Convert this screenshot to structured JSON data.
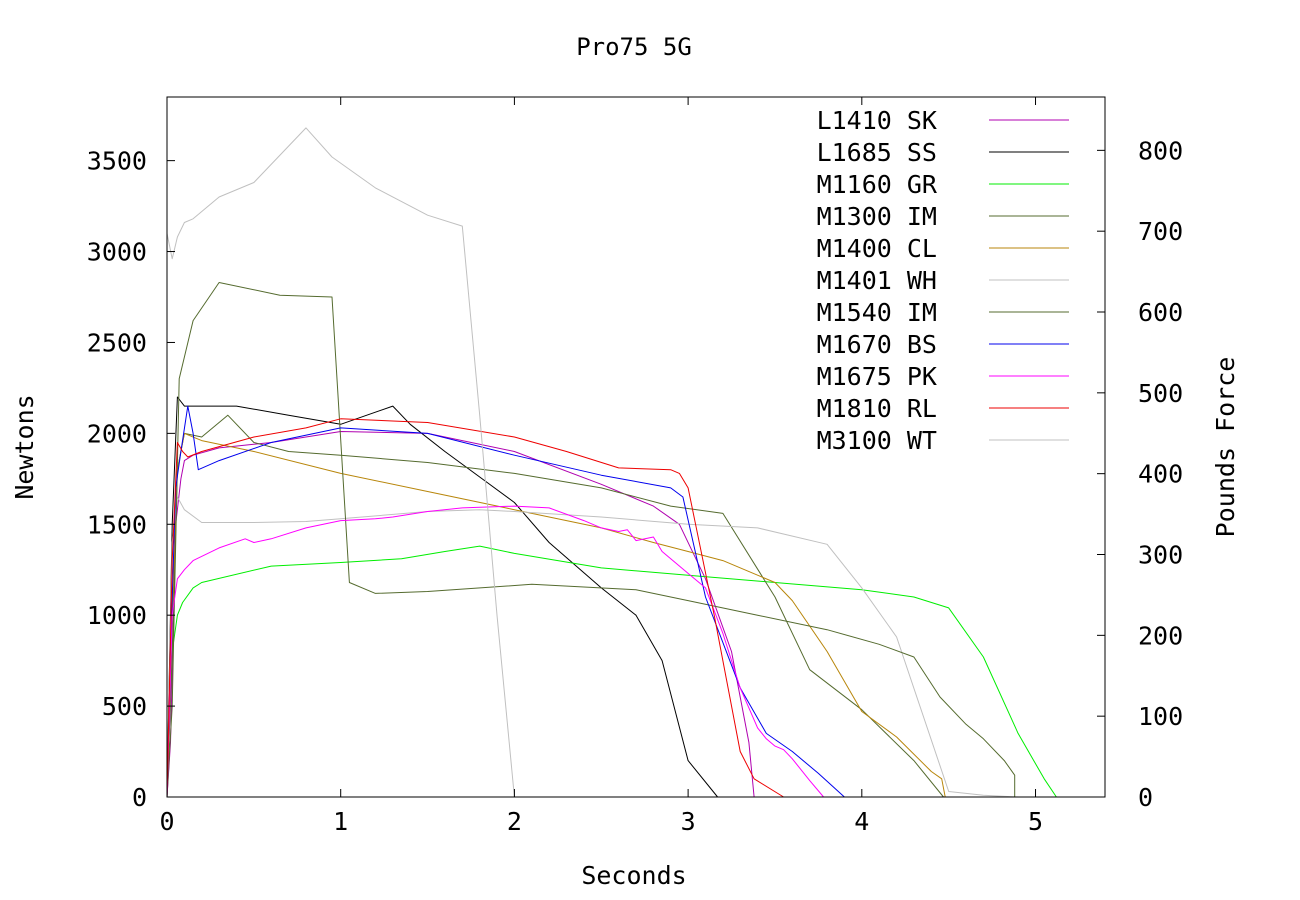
{
  "chart_data": {
    "type": "line",
    "title": "Pro75 5G",
    "xlabel": "Seconds",
    "ylabel": "Newtons",
    "y2label": "Pounds Force",
    "xlim": [
      0,
      5.4
    ],
    "ylim": [
      0,
      3850
    ],
    "y2lim": [
      0,
      866
    ],
    "xticks": [
      0,
      1,
      2,
      3,
      4,
      5
    ],
    "yticks": [
      0,
      500,
      1000,
      1500,
      2000,
      2500,
      3000,
      3500
    ],
    "y2ticks": [
      0,
      100,
      200,
      300,
      400,
      500,
      600,
      700,
      800
    ],
    "grid": false,
    "legend_position": "top-right",
    "series": [
      {
        "name": "L1410 SK",
        "color": "#b000b0",
        "x": [
          0,
          0.02,
          0.05,
          0.08,
          0.1,
          0.15,
          0.3,
          0.6,
          1.0,
          1.5,
          2.0,
          2.5,
          2.8,
          2.95,
          3.1,
          3.25,
          3.35,
          3.38
        ],
        "y": [
          0,
          300,
          1500,
          1750,
          1850,
          1880,
          1920,
          1950,
          2010,
          2000,
          1900,
          1720,
          1600,
          1500,
          1200,
          800,
          300,
          0
        ]
      },
      {
        "name": "L1685 SS",
        "color": "#000000",
        "x": [
          0,
          0.03,
          0.06,
          0.1,
          0.2,
          0.4,
          0.7,
          1.0,
          1.15,
          1.3,
          1.4,
          1.6,
          1.8,
          2.0,
          2.2,
          2.5,
          2.7,
          2.85,
          3.0,
          3.17
        ],
        "y": [
          0,
          1500,
          2200,
          2150,
          2150,
          2150,
          2100,
          2050,
          2100,
          2150,
          2050,
          1900,
          1760,
          1620,
          1400,
          1150,
          1000,
          750,
          200,
          0
        ]
      },
      {
        "name": "M1160 GR",
        "color": "#00ee00",
        "x": [
          0,
          0.03,
          0.06,
          0.09,
          0.15,
          0.2,
          0.6,
          1.0,
          1.35,
          1.6,
          1.8,
          2.0,
          2.5,
          3.0,
          3.5,
          4.0,
          4.3,
          4.5,
          4.7,
          4.9,
          5.05,
          5.12
        ],
        "y": [
          0,
          800,
          1000,
          1070,
          1150,
          1180,
          1270,
          1290,
          1310,
          1350,
          1380,
          1340,
          1260,
          1220,
          1180,
          1140,
          1100,
          1040,
          770,
          350,
          100,
          0
        ]
      },
      {
        "name": "M1300 IM",
        "color": "#556b2f",
        "x": [
          0,
          0.03,
          0.06,
          0.1,
          0.2,
          0.35,
          0.5,
          0.7,
          1.0,
          1.5,
          2.0,
          2.5,
          2.9,
          3.2,
          3.5,
          3.7,
          4.0,
          4.3,
          4.47
        ],
        "y": [
          0,
          800,
          1800,
          2000,
          1980,
          2100,
          1950,
          1900,
          1880,
          1840,
          1780,
          1700,
          1600,
          1560,
          1100,
          700,
          480,
          200,
          0
        ]
      },
      {
        "name": "M1400 CL",
        "color": "#b8860b",
        "x": [
          0,
          0.03,
          0.06,
          0.1,
          0.2,
          0.5,
          1.0,
          1.5,
          2.0,
          2.5,
          2.8,
          3.0,
          3.2,
          3.4,
          3.5,
          3.6,
          3.8,
          4.0,
          4.2,
          4.4,
          4.46,
          4.48
        ],
        "y": [
          0,
          1000,
          1800,
          2000,
          1960,
          1900,
          1780,
          1680,
          1580,
          1480,
          1400,
          1350,
          1300,
          1220,
          1180,
          1080,
          800,
          470,
          330,
          140,
          100,
          0
        ]
      },
      {
        "name": "M1401 WH",
        "color": "#c0c0c0",
        "x": [
          0,
          0.03,
          0.06,
          0.1,
          0.2,
          0.5,
          0.8,
          1.0,
          1.5,
          1.8,
          2.0,
          2.5,
          3.0,
          3.4,
          3.8,
          4.0,
          4.2,
          4.5,
          4.7,
          4.9
        ],
        "y": [
          0,
          1400,
          1650,
          1580,
          1510,
          1510,
          1515,
          1530,
          1570,
          1580,
          1570,
          1540,
          1500,
          1480,
          1390,
          1150,
          880,
          30,
          10,
          0
        ]
      },
      {
        "name": "M1540 IM",
        "color": "#556b2f",
        "x": [
          0,
          0.03,
          0.07,
          0.15,
          0.3,
          0.65,
          0.95,
          1.05,
          1.2,
          1.5,
          2.1,
          2.7,
          3.0,
          3.4,
          3.8,
          4.1,
          4.3,
          4.45,
          4.6,
          4.7,
          4.82,
          4.88,
          4.88
        ],
        "y": [
          0,
          500,
          2300,
          2620,
          2830,
          2760,
          2750,
          1180,
          1120,
          1130,
          1170,
          1140,
          1080,
          1000,
          920,
          840,
          770,
          550,
          400,
          320,
          200,
          120,
          0
        ]
      },
      {
        "name": "M1670 BS",
        "color": "#0000ee",
        "x": [
          0,
          0.02,
          0.05,
          0.08,
          0.12,
          0.15,
          0.18,
          0.3,
          0.6,
          1.0,
          1.5,
          2.0,
          2.5,
          2.9,
          2.97,
          3.1,
          3.3,
          3.45,
          3.6,
          3.75,
          3.9
        ],
        "y": [
          0,
          800,
          1700,
          1900,
          2150,
          2000,
          1800,
          1850,
          1950,
          2030,
          2000,
          1880,
          1770,
          1700,
          1650,
          1100,
          600,
          350,
          250,
          130,
          0
        ]
      },
      {
        "name": "M1675 PK",
        "color": "#ff00ff",
        "x": [
          0,
          0.03,
          0.06,
          0.1,
          0.15,
          0.3,
          0.45,
          0.5,
          0.6,
          0.8,
          1.0,
          1.2,
          1.3,
          1.5,
          1.7,
          2.0,
          2.2,
          2.4,
          2.5,
          2.6,
          2.65,
          2.7,
          2.8,
          2.85,
          3.0,
          3.1,
          3.2,
          3.3,
          3.4,
          3.45,
          3.5,
          3.55,
          3.6,
          3.7,
          3.78
        ],
        "y": [
          0,
          1000,
          1200,
          1250,
          1300,
          1370,
          1420,
          1400,
          1420,
          1480,
          1520,
          1530,
          1540,
          1570,
          1590,
          1600,
          1590,
          1520,
          1480,
          1460,
          1470,
          1410,
          1430,
          1350,
          1230,
          1150,
          900,
          600,
          380,
          320,
          280,
          260,
          210,
          90,
          0
        ]
      },
      {
        "name": "M1810 RL",
        "color": "#ee0000",
        "x": [
          0,
          0.03,
          0.06,
          0.09,
          0.12,
          0.2,
          0.5,
          0.8,
          1.0,
          1.5,
          2.0,
          2.3,
          2.6,
          2.9,
          2.95,
          3.0,
          3.15,
          3.3,
          3.38,
          3.55
        ],
        "y": [
          0,
          1300,
          1950,
          1900,
          1870,
          1900,
          1980,
          2030,
          2080,
          2060,
          1980,
          1900,
          1810,
          1800,
          1780,
          1700,
          1000,
          250,
          100,
          0
        ]
      },
      {
        "name": "M3100 WT",
        "color": "#c0c0c0",
        "x": [
          0,
          0.03,
          0.06,
          0.1,
          0.15,
          0.3,
          0.5,
          0.8,
          0.95,
          1.2,
          1.5,
          1.7,
          1.8,
          1.9,
          1.97,
          2.0
        ],
        "y": [
          3100,
          2960,
          3080,
          3160,
          3180,
          3300,
          3380,
          3680,
          3520,
          3350,
          3200,
          3140,
          2100,
          1000,
          300,
          0
        ]
      }
    ]
  }
}
